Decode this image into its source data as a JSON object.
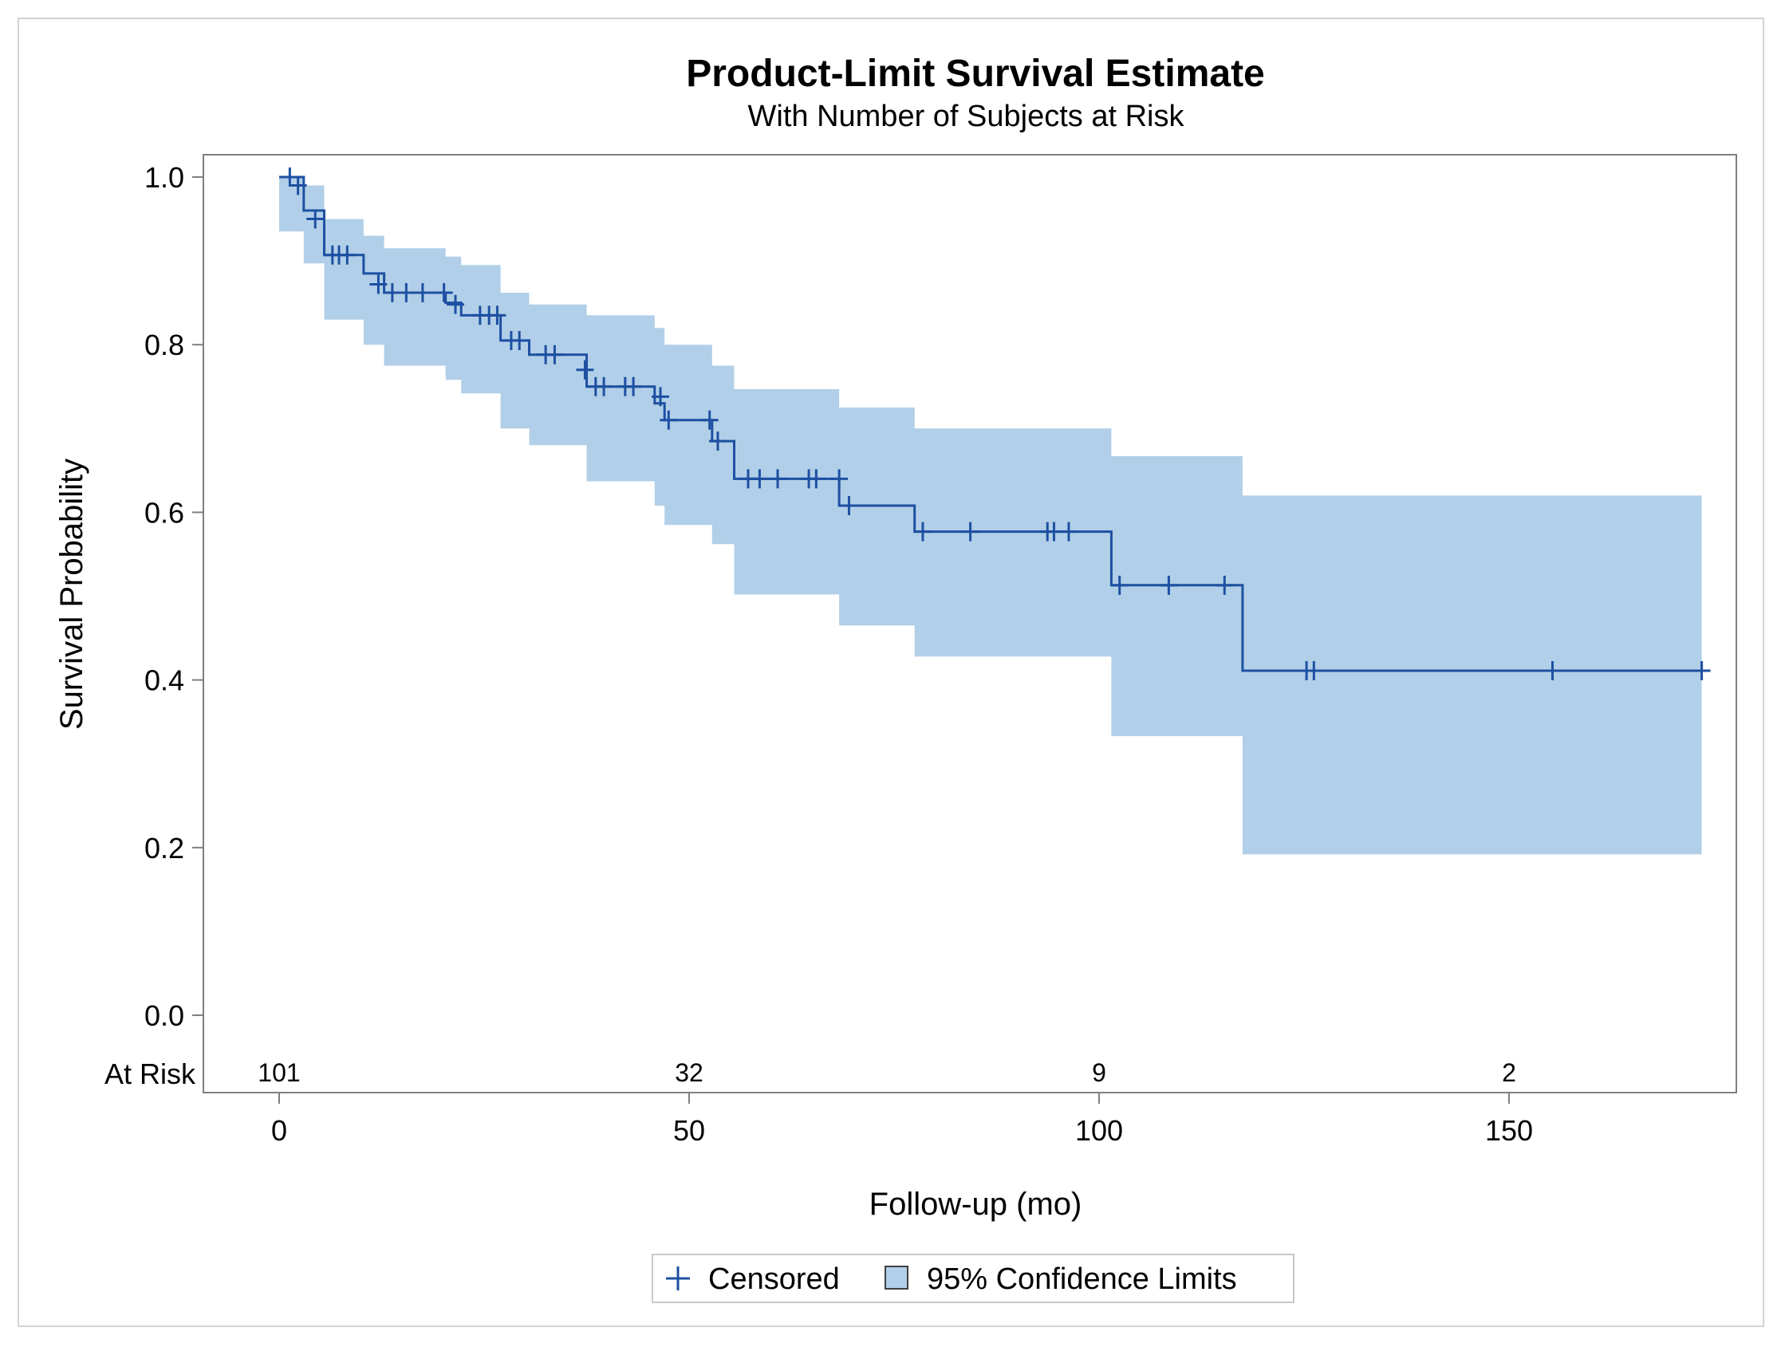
{
  "chart_data": {
    "type": "line",
    "title": "Product-Limit Survival Estimate",
    "subtitle": "With Number of Subjects at Risk",
    "xlabel": "Follow-up (mo)",
    "ylabel": "Survival Probability",
    "xlim": [
      -9,
      178
    ],
    "ylim": [
      -0.09,
      1.027
    ],
    "x_ticks": [
      "0",
      "50",
      "100",
      "150"
    ],
    "x_tick_values": [
      0,
      50,
      100,
      150
    ],
    "y_ticks": [
      "0.0",
      "0.2",
      "0.4",
      "0.6",
      "0.8",
      "1.0"
    ],
    "y_tick_values": [
      0.0,
      0.2,
      0.4,
      0.6,
      0.8,
      1.0
    ],
    "grid": false,
    "legend_position": "bottom-center",
    "at_risk": {
      "label": "At Risk",
      "times": [
        0,
        50,
        100,
        150
      ],
      "values": [
        "101",
        "32",
        "9",
        "2"
      ]
    },
    "legend": [
      {
        "label": "Censored",
        "marker": "plus"
      },
      {
        "label": "95% Confidence Limits",
        "marker": "square"
      }
    ],
    "colors": {
      "line": "#1e50a2",
      "band": "#b1cfe8",
      "axis": "#7f7f7f"
    },
    "series": [
      {
        "type": "step",
        "x": [
          0,
          3,
          5.5,
          10.3,
          12.8,
          20.3,
          22.2,
          27,
          30.5,
          37.5,
          45.8,
          47,
          52.8,
          55.5,
          68.3,
          77.5,
          101.5,
          117.5,
          173.5
        ],
        "y": [
          1.0,
          0.96,
          0.907,
          0.885,
          0.862,
          0.85,
          0.835,
          0.805,
          0.788,
          0.75,
          0.73,
          0.71,
          0.685,
          0.64,
          0.608,
          0.577,
          0.513,
          0.411,
          0.411
        ],
        "lower": [
          0.935,
          0.897,
          0.83,
          0.8,
          0.775,
          0.758,
          0.742,
          0.7,
          0.68,
          0.637,
          0.608,
          0.585,
          0.562,
          0.502,
          0.465,
          0.428,
          0.333,
          0.192,
          0.192
        ],
        "upper": [
          1.0,
          0.99,
          0.95,
          0.93,
          0.915,
          0.905,
          0.895,
          0.862,
          0.848,
          0.835,
          0.82,
          0.8,
          0.775,
          0.747,
          0.725,
          0.7,
          0.667,
          0.62,
          0.62
        ]
      }
    ],
    "censored": {
      "x": [
        1.3,
        2.3,
        4.4,
        6.5,
        7.3,
        8.3,
        12.1,
        13.8,
        15.5,
        17.5,
        20.1,
        21.5,
        24.5,
        25.6,
        26.6,
        28.3,
        29.3,
        32.5,
        33.6,
        37.3,
        38.6,
        39.6,
        42.2,
        43.2,
        46.5,
        47.5,
        52.5,
        53.5,
        57.2,
        58.6,
        60.8,
        64.6,
        65.5,
        68.3,
        69.5,
        78.5,
        84.3,
        93.7,
        94.5,
        96.3,
        102.5,
        108.5,
        115.3,
        125.3,
        126.2,
        155.3,
        173.5
      ],
      "y": [
        1.0,
        0.99,
        0.95,
        0.907,
        0.907,
        0.907,
        0.872,
        0.862,
        0.862,
        0.862,
        0.862,
        0.848,
        0.835,
        0.835,
        0.835,
        0.805,
        0.805,
        0.788,
        0.788,
        0.77,
        0.75,
        0.75,
        0.75,
        0.75,
        0.738,
        0.71,
        0.71,
        0.685,
        0.64,
        0.64,
        0.64,
        0.64,
        0.64,
        0.64,
        0.608,
        0.577,
        0.577,
        0.577,
        0.577,
        0.577,
        0.513,
        0.513,
        0.513,
        0.411,
        0.411,
        0.411,
        0.411
      ]
    }
  }
}
